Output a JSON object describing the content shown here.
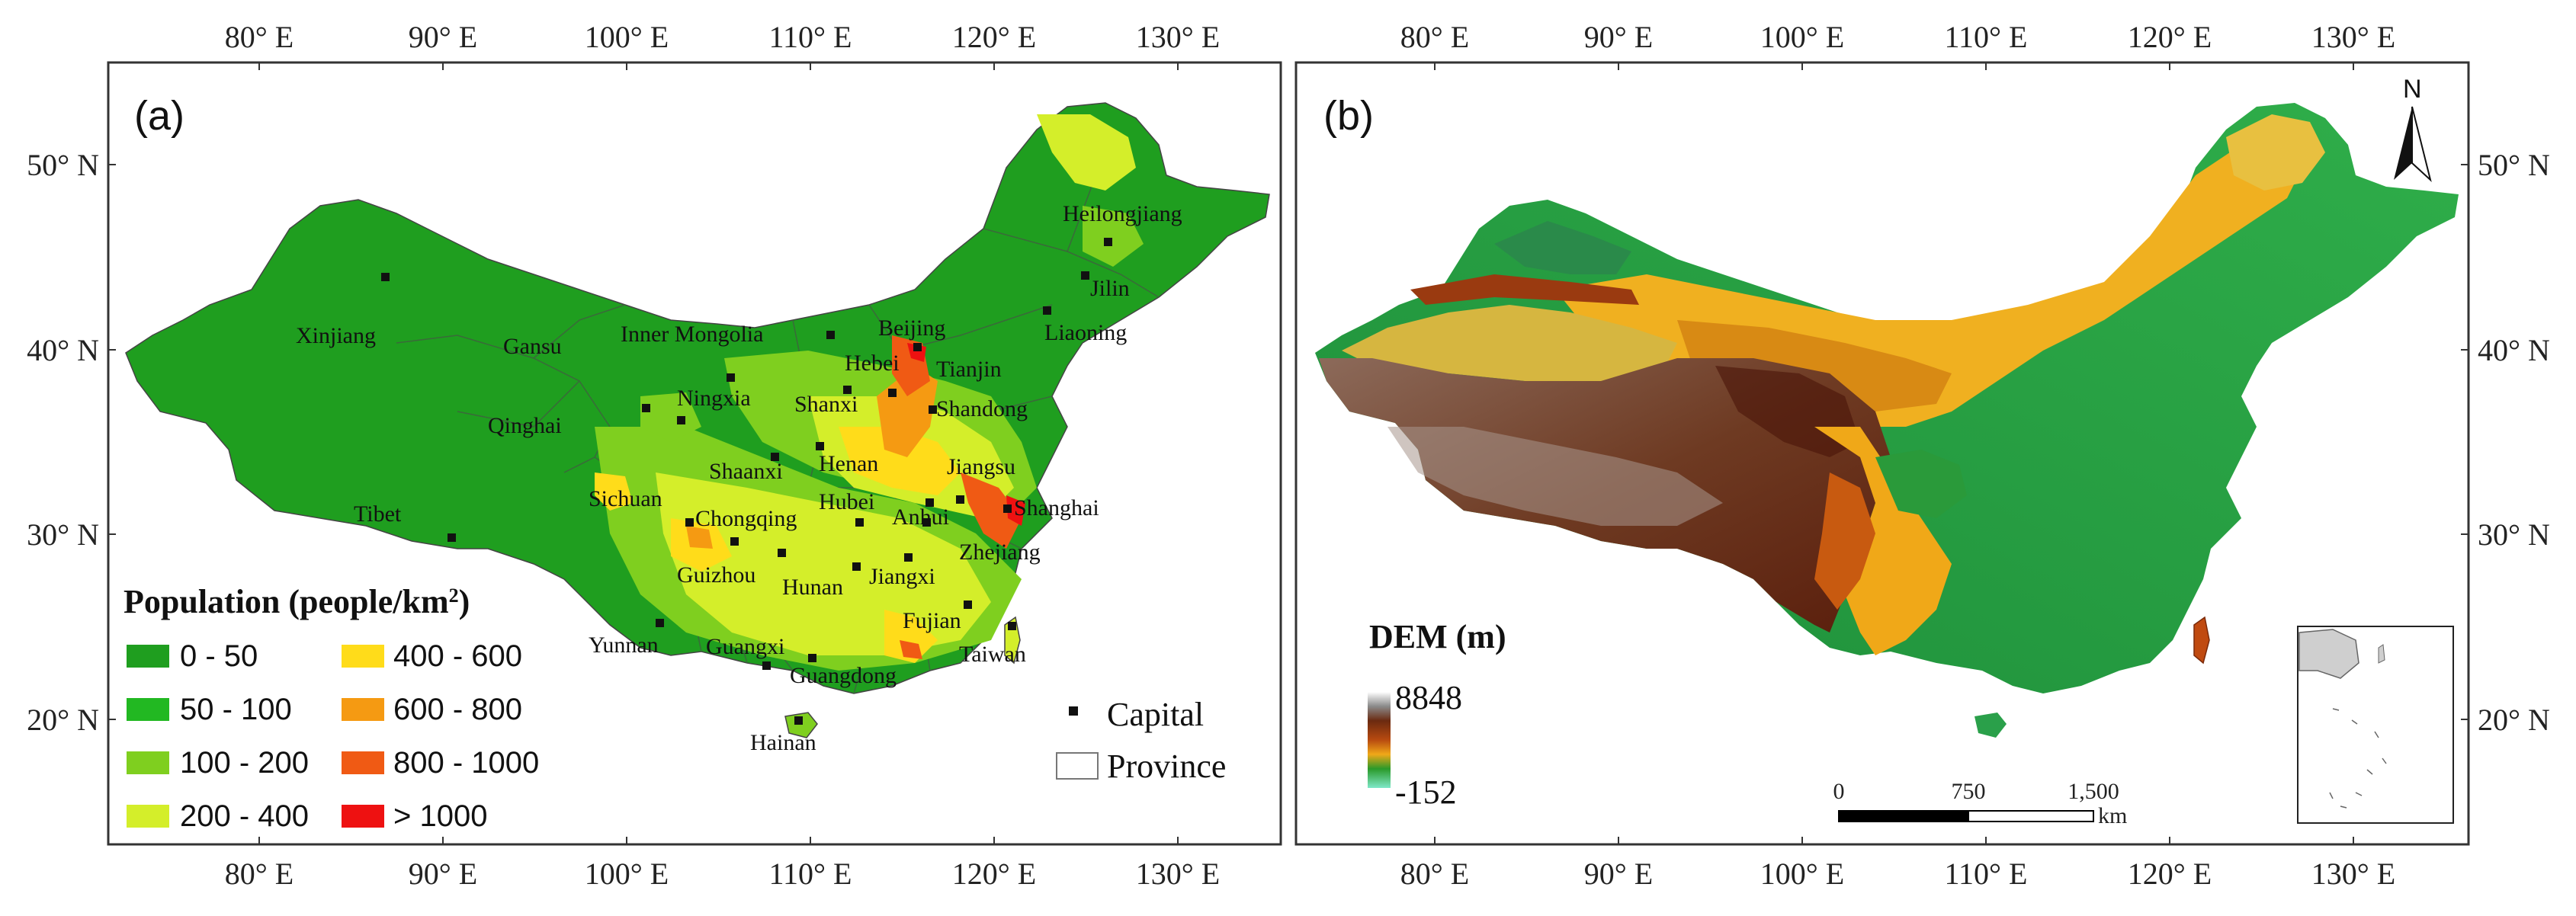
{
  "panel_a": {
    "label": "(a)",
    "legend_title": "Population (people/km",
    "legend_title_sup": "2",
    "legend_title_close": ")",
    "classes": [
      {
        "label": "0 - 50",
        "color": "#1f9e1f"
      },
      {
        "label": "50 - 100",
        "color": "#22b822"
      },
      {
        "label": "100 - 200",
        "color": "#7fcf1f"
      },
      {
        "label": "200 - 400",
        "color": "#d4ee2a"
      },
      {
        "label": "400 - 600",
        "color": "#ffdc1a"
      },
      {
        "label": "600 - 800",
        "color": "#f59a12"
      },
      {
        "label": "800 - 1000",
        "color": "#f05a14"
      },
      {
        "label": "> 1000",
        "color": "#ee1111"
      }
    ],
    "capital_label": "Capital",
    "province_label": "Province",
    "provinces": [
      "Heilongjiang",
      "Jilin",
      "Liaoning",
      "Inner Mongolia",
      "Xinjiang",
      "Gansu",
      "Beijing",
      "Hebei",
      "Tianjin",
      "Ningxia",
      "Shanxi",
      "Shandong",
      "Qinghai",
      "Henan",
      "Jiangsu",
      "Shaanxi",
      "Shanghai",
      "Hubei",
      "Anhui",
      "Tibet",
      "Sichuan",
      "Chongqing",
      "Zhejiang",
      "Guizhou",
      "Hunan",
      "Jiangxi",
      "Fujian",
      "Yunnan",
      "Guangxi",
      "Taiwan",
      "Guangdong",
      "Hainan"
    ]
  },
  "panel_b": {
    "label": "(b)",
    "legend_title": "DEM (m)",
    "dem_max": "8848",
    "dem_min": "-152",
    "north_label": "N",
    "scale_values": [
      "0",
      "750",
      "1,500"
    ],
    "scale_unit": "km"
  },
  "axes": {
    "lon_ticks": [
      "80° E",
      "90° E",
      "100° E",
      "110° E",
      "120° E",
      "130° E"
    ],
    "lat_ticks": [
      "50° N",
      "40° N",
      "30° N",
      "20° N"
    ]
  }
}
